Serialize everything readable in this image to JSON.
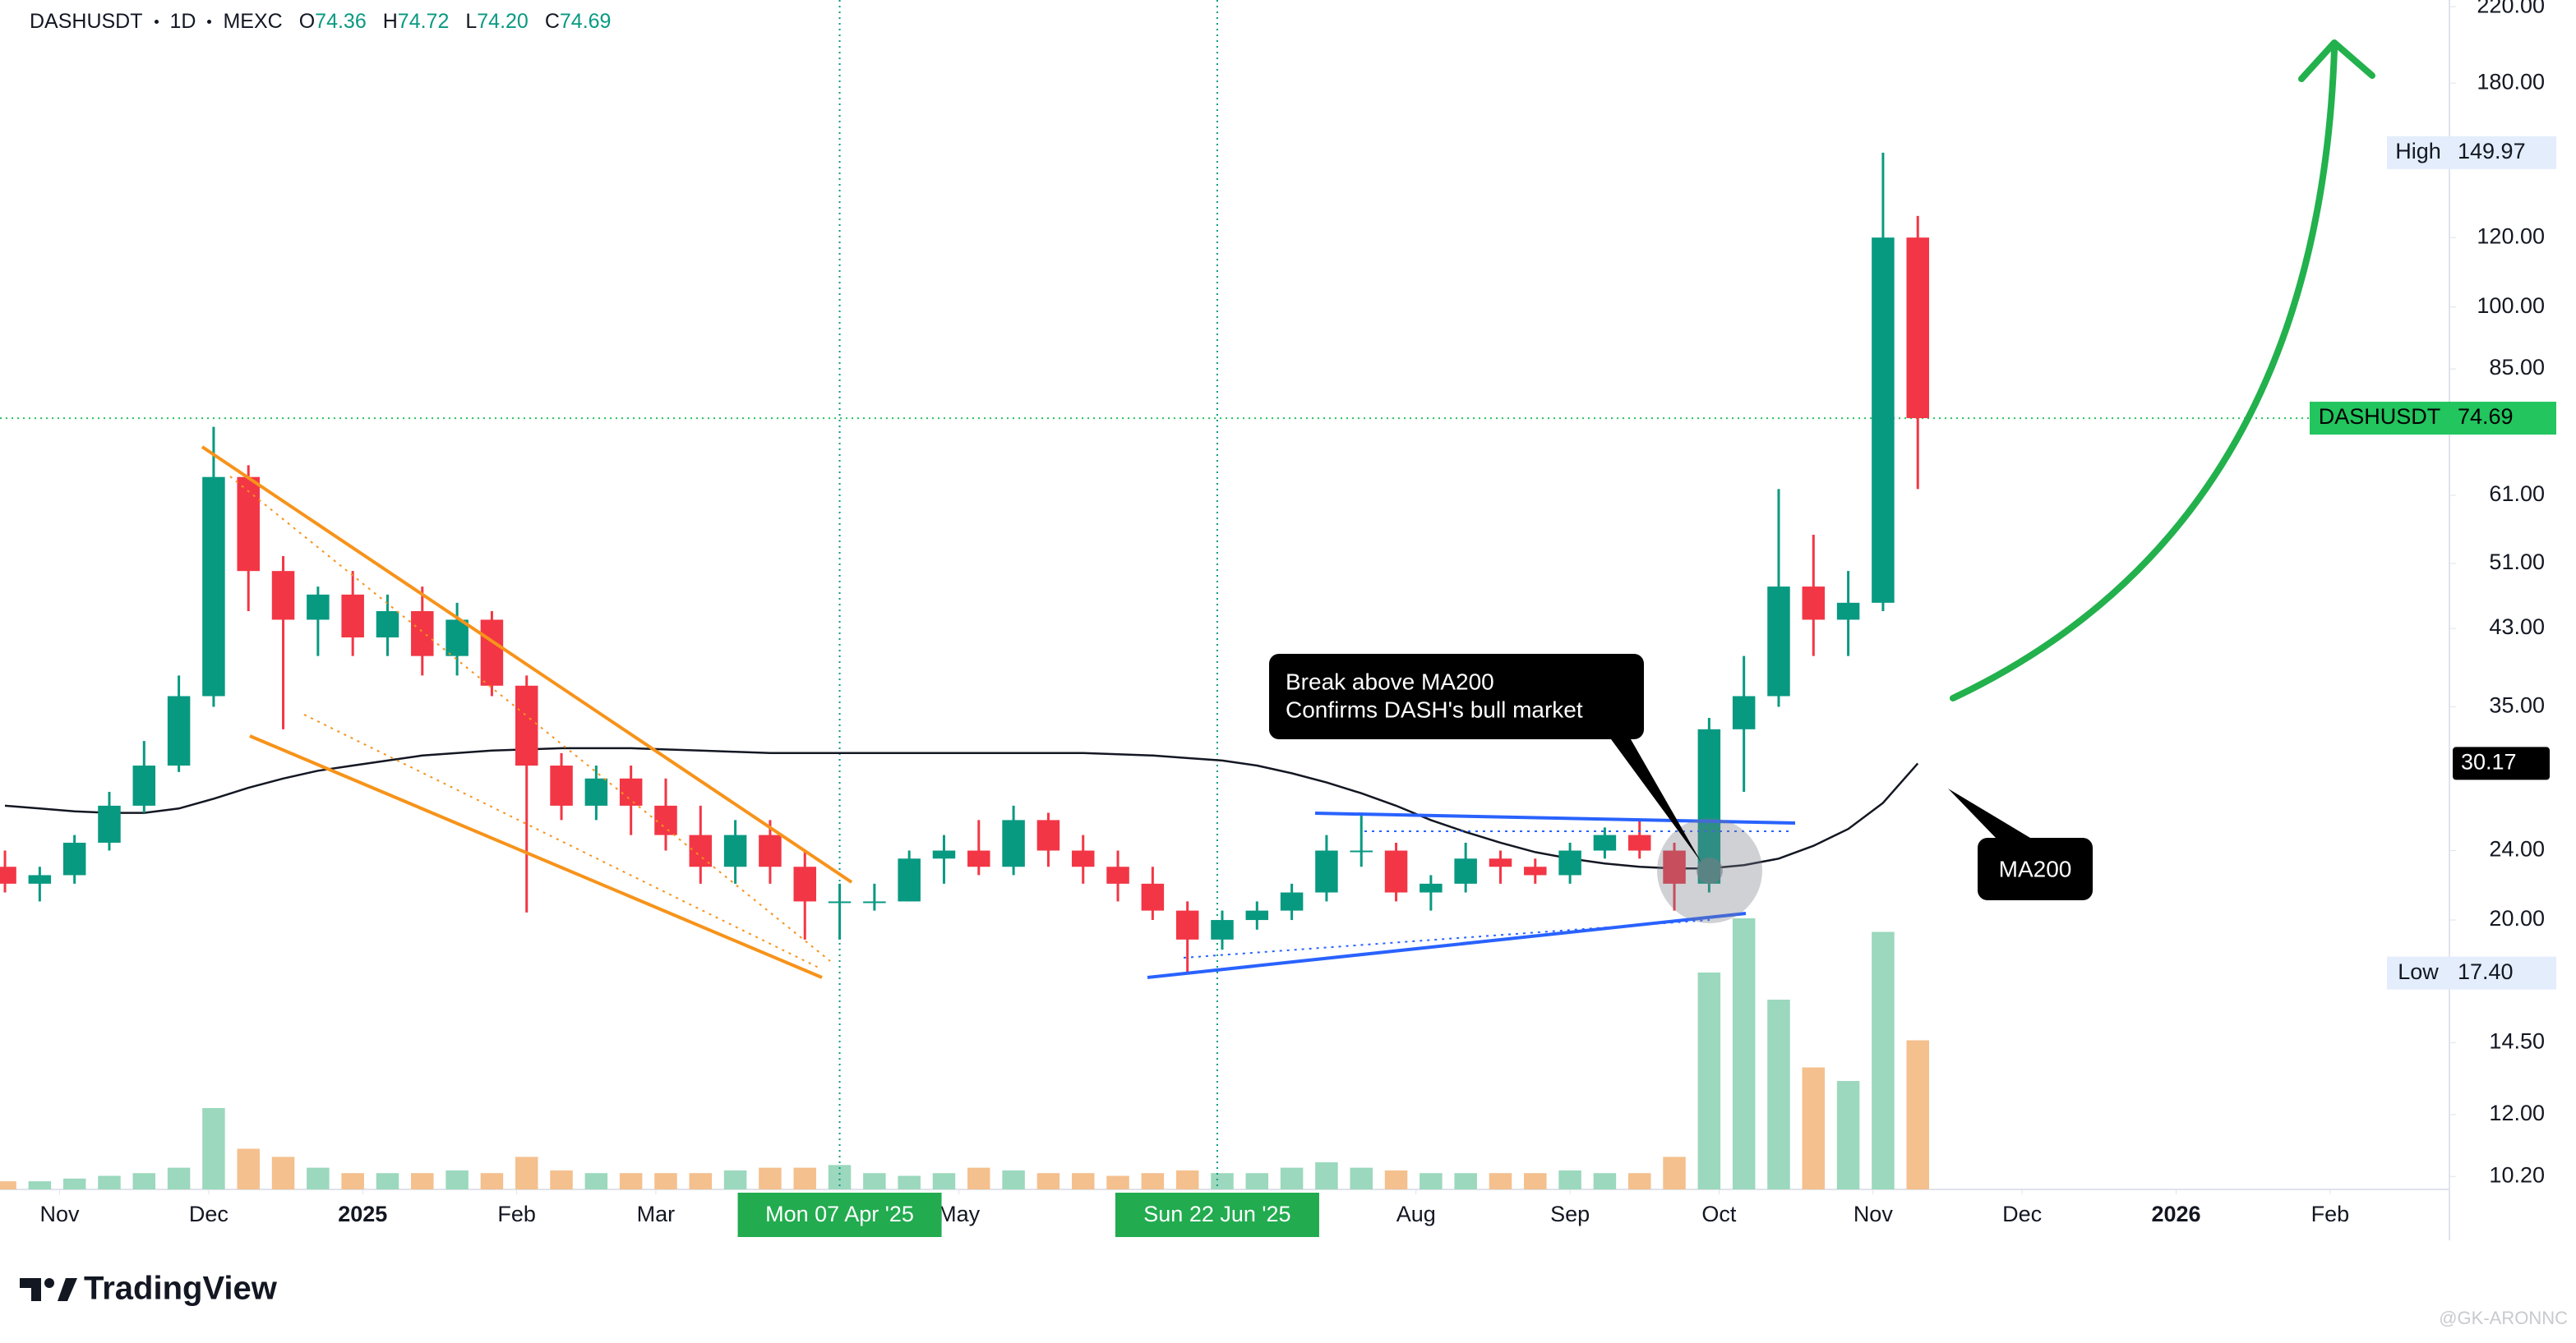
{
  "chart_data": {
    "type": "candlestick",
    "header": {
      "symbol": "DASHUSDT",
      "interval": "1D",
      "exchange": "MEXC",
      "ohlc_labels": [
        "O",
        "H",
        "L",
        "C"
      ],
      "ohlc": [
        74.36,
        74.72,
        {
          "value": 74.2,
          "label": "74.20"
        },
        74.69
      ]
    },
    "x": [
      "2024-10-21",
      "2024-10-28",
      "2024-11-04",
      "2024-11-11",
      "2024-11-18",
      "2024-11-25",
      "2024-12-02",
      "2024-12-09",
      "2024-12-16",
      "2024-12-23",
      "2024-12-30",
      "2025-01-06",
      "2025-01-13",
      "2025-01-20",
      "2025-01-27",
      "2025-02-03",
      "2025-02-10",
      "2025-02-17",
      "2025-02-24",
      "2025-03-03",
      "2025-03-10",
      "2025-03-17",
      "2025-03-24",
      "2025-03-31",
      "2025-04-07",
      "2025-04-14",
      "2025-04-21",
      "2025-04-28",
      "2025-05-05",
      "2025-05-12",
      "2025-05-19",
      "2025-05-26",
      "2025-06-02",
      "2025-06-09",
      "2025-06-16",
      "2025-06-23",
      "2025-06-30",
      "2025-07-07",
      "2025-07-14",
      "2025-07-21",
      "2025-07-28",
      "2025-08-04",
      "2025-08-11",
      "2025-08-18",
      "2025-08-25",
      "2025-09-01",
      "2025-09-08",
      "2025-09-15",
      "2025-09-22",
      "2025-09-29",
      "2025-10-06",
      "2025-10-13",
      "2025-10-20",
      "2025-10-27",
      "2025-11-03",
      "2025-11-10"
    ],
    "open": [
      23,
      22,
      22.5,
      24.5,
      27,
      30,
      36,
      64,
      50,
      44,
      47,
      42,
      45,
      40,
      44,
      37,
      30,
      27,
      29,
      27,
      25,
      23,
      25,
      23,
      21,
      21,
      21,
      23.5,
      24,
      23,
      26,
      24,
      23,
      22,
      20.5,
      19,
      20,
      20.5,
      21.5,
      24,
      24,
      21.5,
      22,
      23.5,
      23,
      22.5,
      24,
      25,
      24,
      22,
      33,
      36,
      48,
      44,
      46,
      120
    ],
    "high": [
      24,
      23,
      25,
      28,
      32,
      38,
      73,
      66,
      52,
      48,
      50,
      47,
      48,
      46,
      45,
      38,
      31,
      30,
      30,
      29,
      27,
      26,
      26,
      24,
      22,
      22,
      24,
      25,
      26,
      27,
      26.5,
      25,
      24,
      23,
      21,
      20.5,
      21,
      22,
      25,
      26.5,
      24.5,
      22.5,
      24.5,
      24,
      23.5,
      24.5,
      25.5,
      26,
      24.5,
      34,
      40,
      62,
      55,
      50,
      149.97,
      127
    ],
    "low": [
      21.5,
      21,
      22,
      24,
      26.5,
      29.5,
      35,
      45,
      33,
      40,
      40,
      40,
      38,
      38,
      36,
      20.4,
      26,
      26,
      25,
      24,
      22,
      22,
      22,
      19,
      19,
      20.5,
      21,
      22,
      22.5,
      22.5,
      23,
      22,
      21,
      20,
      17.4,
      18.5,
      19.5,
      20,
      21,
      23,
      21,
      20.5,
      21.5,
      22,
      22,
      22,
      23.5,
      23.5,
      20.5,
      21.5,
      28,
      35,
      40,
      40,
      45,
      62
    ],
    "close": [
      22,
      22.5,
      24.5,
      27,
      30,
      36,
      64,
      50,
      44,
      47,
      42,
      45,
      40,
      44,
      37,
      30,
      27,
      29,
      27,
      25,
      23,
      25,
      23,
      21,
      21,
      21,
      23.5,
      24,
      23,
      26,
      24,
      23,
      22,
      20.5,
      19,
      20,
      20.5,
      21.5,
      24,
      24,
      21.5,
      22,
      23.5,
      23,
      22.5,
      24,
      25,
      24,
      22,
      33,
      36,
      48,
      44,
      46,
      120,
      74.69
    ],
    "volume": [
      3,
      3,
      4,
      5,
      6,
      8,
      30,
      15,
      12,
      8,
      6,
      6,
      6,
      7,
      6,
      12,
      7,
      6,
      6,
      6,
      6,
      7,
      8,
      8,
      9,
      6,
      5,
      6,
      8,
      7,
      6,
      6,
      5,
      6,
      7,
      6,
      6,
      8,
      10,
      8,
      7,
      6,
      6,
      6,
      6,
      7,
      6,
      6,
      12,
      80,
      100,
      70,
      45,
      40,
      95,
      55
    ],
    "ma": {
      "name": "MA200",
      "color": "#131722",
      "values": [
        27,
        26.8,
        26.6,
        26.5,
        26.5,
        26.8,
        27.5,
        28.3,
        29,
        29.6,
        30,
        30.4,
        30.8,
        31,
        31.2,
        31.3,
        31.4,
        31.4,
        31.4,
        31.3,
        31.2,
        31.1,
        31,
        31,
        31,
        31,
        31,
        31,
        31,
        31,
        31,
        31,
        30.9,
        30.8,
        30.6,
        30.4,
        30,
        29.4,
        28.7,
        27.9,
        27,
        26,
        25.2,
        24.5,
        23.9,
        23.5,
        23.2,
        23,
        22.9,
        22.9,
        23.1,
        23.5,
        24.3,
        25.4,
        27.2,
        30.17
      ]
    },
    "up_color": "#089981",
    "down_color": "#f23645",
    "volume_up_color": "#9bd8bd",
    "volume_down_color": "#f4c08e",
    "log_scale": true,
    "xlim": [
      "2024-10-20",
      "2026-02-25"
    ],
    "xticks": [
      {
        "value": "2024-11-01",
        "label": "Nov"
      },
      {
        "value": "2024-12-01",
        "label": "Dec"
      },
      {
        "value": "2025-01-01",
        "label": "2025"
      },
      {
        "value": "2025-02-01",
        "label": "Feb"
      },
      {
        "value": "2025-03-01",
        "label": "Mar"
      },
      {
        "value": "2025-05-01",
        "label": "May"
      },
      {
        "value": "2025-08-01",
        "label": "Aug"
      },
      {
        "value": "2025-09-01",
        "label": "Sep"
      },
      {
        "value": "2025-10-01",
        "label": "Oct"
      },
      {
        "value": "2025-11-01",
        "label": "Nov"
      },
      {
        "value": "2025-12-01",
        "label": "Dec"
      },
      {
        "value": "2026-01-01",
        "label": "2026"
      },
      {
        "value": "2026-02-01",
        "label": "Feb"
      }
    ],
    "ylim": [
      9.86,
      223.9
    ],
    "yticks": [
      {
        "value": 220,
        "label": "220.00"
      },
      {
        "value": 180,
        "label": "180.00"
      },
      {
        "value": 120,
        "label": "120.00"
      },
      {
        "value": 100,
        "label": "100.00"
      },
      {
        "value": 85,
        "label": "85.00"
      },
      {
        "value": 61,
        "label": "61.00"
      },
      {
        "value": 51,
        "label": "51.00"
      },
      {
        "value": 43,
        "label": "43.00"
      },
      {
        "value": 35,
        "label": "35.00"
      },
      {
        "value": 24,
        "label": "24.00"
      },
      {
        "value": 20,
        "label": "20.00"
      },
      {
        "value": 14.5,
        "label": "14.50"
      },
      {
        "value": 12,
        "label": "12.00"
      },
      {
        "value": 10.2,
        "label": "10.20"
      }
    ],
    "crosshairs": [
      {
        "x": "2025-04-07",
        "label": "Mon 07 Apr '25"
      },
      {
        "x": "2025-06-22",
        "label": "Sun 22 Jun '25"
      }
    ],
    "high_tag": "High",
    "low_tag": "Low",
    "low_price": {
      "value": 17.4,
      "label": "17.40"
    },
    "annotations": [
      "Break above MA200",
      "Confirms DASH's bull market"
    ]
  },
  "footer": {
    "brand": "TradingView",
    "watermark": "@GK-ARONNC"
  }
}
